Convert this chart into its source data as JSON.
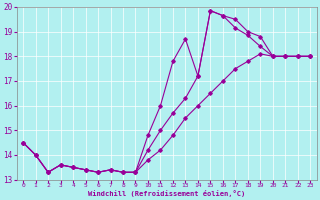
{
  "xlabel": "Windchill (Refroidissement éolien,°C)",
  "background_color": "#b2f0f0",
  "grid_color": "#ffffff",
  "line_color": "#990099",
  "xlim": [
    -0.5,
    23.5
  ],
  "ylim": [
    13.0,
    20.0
  ],
  "xticks": [
    0,
    1,
    2,
    3,
    4,
    5,
    6,
    7,
    8,
    9,
    10,
    11,
    12,
    13,
    14,
    15,
    16,
    17,
    18,
    19,
    20,
    21,
    22,
    23
  ],
  "yticks": [
    13,
    14,
    15,
    16,
    17,
    18,
    19,
    20
  ],
  "line1_x": [
    0,
    1,
    2,
    3,
    4,
    5,
    6,
    7,
    8,
    9,
    10,
    11,
    12,
    13,
    14,
    15,
    16,
    17,
    18,
    19,
    20,
    21,
    22,
    23
  ],
  "line1_y": [
    14.5,
    14.0,
    13.3,
    13.6,
    13.5,
    13.4,
    13.3,
    13.4,
    13.3,
    13.3,
    14.8,
    16.0,
    17.8,
    18.7,
    17.2,
    19.85,
    19.65,
    19.15,
    18.85,
    18.4,
    18.0,
    18.0,
    18.0,
    18.0
  ],
  "line2_x": [
    0,
    1,
    2,
    3,
    4,
    5,
    6,
    7,
    8,
    9,
    10,
    11,
    12,
    13,
    14,
    15,
    16,
    17,
    18,
    19,
    20,
    21,
    22,
    23
  ],
  "line2_y": [
    14.5,
    14.0,
    13.3,
    13.6,
    13.5,
    13.4,
    13.3,
    13.4,
    13.3,
    13.3,
    14.2,
    15.0,
    15.7,
    16.3,
    17.2,
    19.85,
    19.65,
    19.5,
    19.0,
    18.8,
    18.0,
    18.0,
    18.0,
    18.0
  ],
  "line3_x": [
    0,
    1,
    2,
    3,
    4,
    5,
    6,
    7,
    8,
    9,
    10,
    11,
    12,
    13,
    14,
    15,
    16,
    17,
    18,
    19,
    20,
    21,
    22,
    23
  ],
  "line3_y": [
    14.5,
    14.0,
    13.3,
    13.6,
    13.5,
    13.4,
    13.3,
    13.4,
    13.3,
    13.3,
    13.8,
    14.2,
    14.8,
    15.5,
    16.0,
    16.5,
    17.0,
    17.5,
    17.8,
    18.1,
    18.0,
    18.0,
    18.0,
    18.0
  ]
}
